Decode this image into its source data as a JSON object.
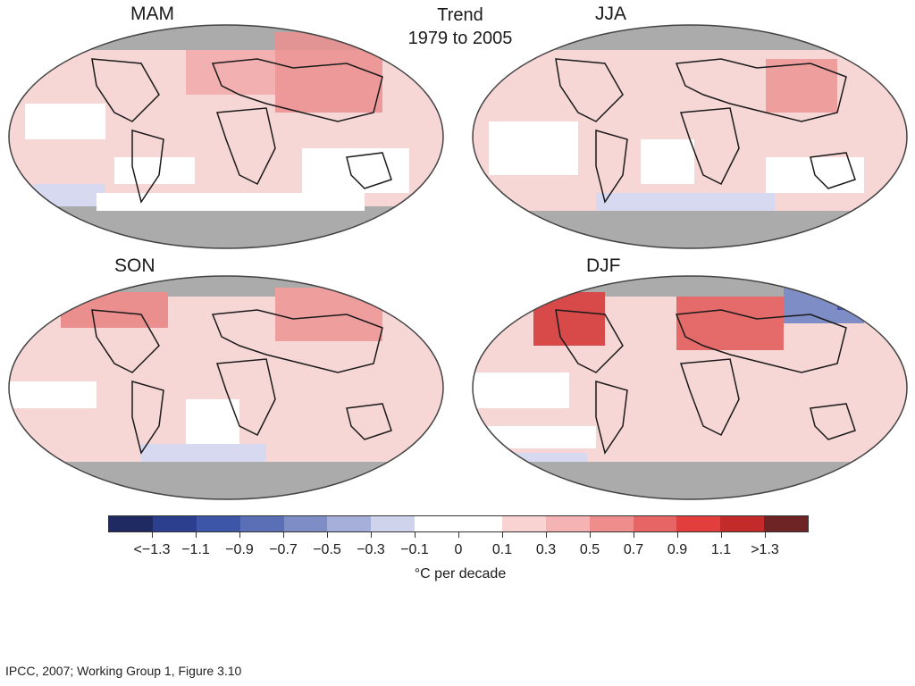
{
  "trend_title": {
    "line1": "Trend",
    "line2": "1979 to 2005"
  },
  "panels": [
    {
      "name": "MAM"
    },
    {
      "name": "JJA"
    },
    {
      "name": "SON"
    },
    {
      "name": "DJF"
    }
  ],
  "colorbar": {
    "colors": [
      "#1f2a63",
      "#2c3f8f",
      "#3e56a8",
      "#5a6fb6",
      "#7f8dc6",
      "#a6afd9",
      "#cfd3ec",
      "#ffffff",
      "#ffffff",
      "#f9d2d2",
      "#f5b3b3",
      "#ef8d8d",
      "#e86565",
      "#e23e3e",
      "#c32a2a",
      "#6e2424"
    ],
    "tick_labels": [
      "<−1.3",
      "−1.1",
      "−0.9",
      "−0.7",
      "−0.5",
      "−0.3",
      "−0.1",
      "0",
      "0.1",
      "0.3",
      "0.5",
      "0.7",
      "0.9",
      "1.1",
      ">1.3"
    ],
    "unit": "°C per decade"
  },
  "caption": "IPCC, 2007; Working Group 1, Figure 3.10",
  "colors": {
    "land_missing": "#a9a9a9",
    "ocean_base": "#f6d3d3",
    "coast": "#1a1a1a"
  }
}
